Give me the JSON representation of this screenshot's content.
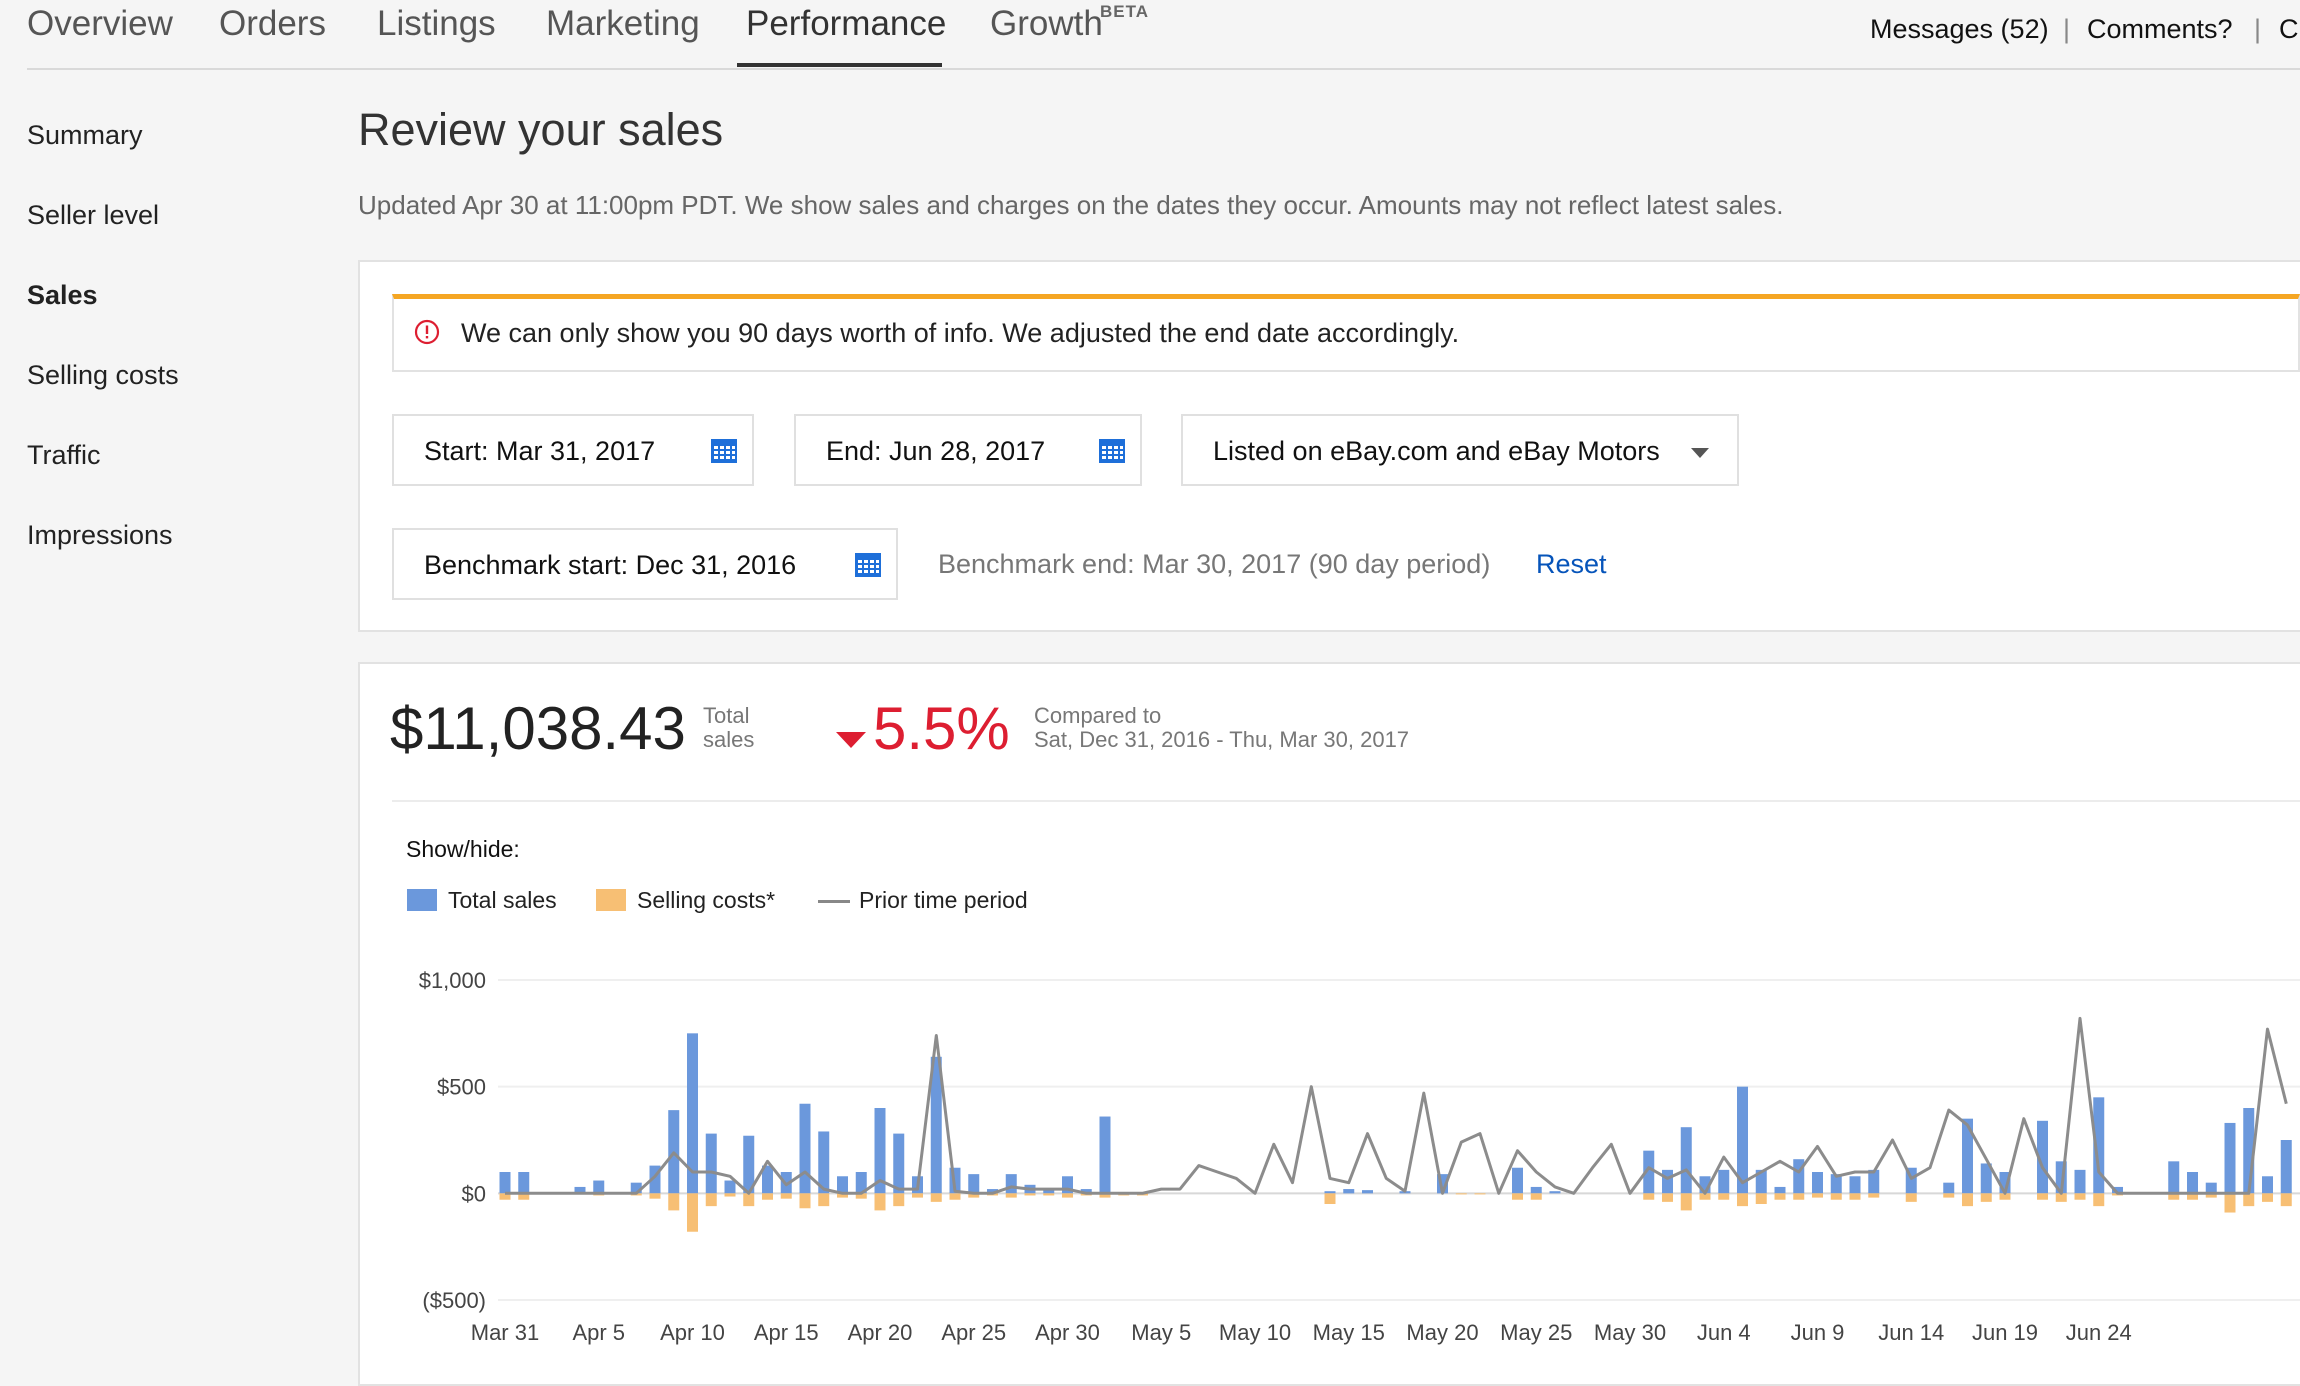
{
  "topnav": {
    "tabs": [
      "Overview",
      "Orders",
      "Listings",
      "Marketing",
      "Performance",
      "Growth"
    ],
    "beta_label": "BETA",
    "messages": "Messages (52)",
    "comments": "Comments?",
    "sep": "|",
    "cut_link": "C"
  },
  "sidebar": {
    "items": [
      "Summary",
      "Seller level",
      "Sales",
      "Selling costs",
      "Traffic",
      "Impressions"
    ]
  },
  "header": {
    "title": "Review your sales",
    "updated": "Updated Apr 30 at 11:00pm PDT. We show sales and charges on the dates they occur. Amounts may not reflect latest sales."
  },
  "filters": {
    "alert": "We can only show you 90 days worth of info. We adjusted the end date accordingly.",
    "start": "Start: Mar 31, 2017",
    "end": "End: Jun 28, 2017",
    "listed_on": "Listed on eBay.com and eBay Motors",
    "benchmark_start": "Benchmark start: Dec 31, 2016",
    "benchmark_end": "Benchmark end: Mar 30, 2017 (90 day period)",
    "reset": "Reset"
  },
  "summary": {
    "total": "$11,038.43",
    "total_label_1": "Total",
    "total_label_2": "sales",
    "change": "5.5%",
    "compared_label": "Compared to",
    "compared_range": "Sat, Dec 31, 2016 - Thu, Mar 30, 2017"
  },
  "colors": {
    "total_sales": "#6b98dc",
    "selling_costs": "#f7bf74",
    "prior_period": "#8c8c8c",
    "negative": "#dd1e31",
    "link": "#0654ba"
  },
  "chart_data": {
    "type": "bar",
    "show_hide_label": "Show/hide:",
    "legend": [
      "Total sales",
      "Selling costs*",
      "Prior time period"
    ],
    "y_ticks": [
      "$1,000",
      "$500",
      "$0",
      "($500)"
    ],
    "ylim": [
      -500,
      1000
    ],
    "x_ticks": [
      "Mar 31",
      "Apr 5",
      "Apr 10",
      "Apr 15",
      "Apr 20",
      "Apr 25",
      "Apr 30",
      "May 5",
      "May 10",
      "May 15",
      "May 20",
      "May 25",
      "May 30",
      "Jun 4",
      "Jun 9",
      "Jun 14",
      "Jun 19",
      "Jun 24"
    ],
    "series": [
      {
        "name": "Total sales",
        "values": [
          100,
          100,
          0,
          0,
          30,
          60,
          0,
          50,
          130,
          390,
          750,
          280,
          60,
          270,
          130,
          100,
          420,
          290,
          80,
          100,
          400,
          280,
          80,
          640,
          120,
          90,
          20,
          90,
          40,
          20,
          80,
          20,
          360,
          0,
          0,
          0,
          0,
          0,
          0,
          0,
          0,
          0,
          0,
          0,
          10,
          20,
          15,
          0,
          10,
          0,
          90,
          0,
          0,
          0,
          120,
          30,
          10,
          0,
          0,
          0,
          0,
          200,
          110,
          310,
          80,
          110,
          500,
          110,
          30,
          160,
          100,
          90,
          80,
          110,
          0,
          120,
          0,
          50,
          350,
          140,
          100,
          0,
          340,
          150,
          110,
          450,
          30,
          0,
          0,
          150,
          100,
          50,
          330,
          400,
          80,
          250
        ]
      },
      {
        "name": "Selling costs*",
        "values": [
          -30,
          -30,
          0,
          0,
          -5,
          -10,
          0,
          -10,
          -25,
          -80,
          -180,
          -60,
          -15,
          -60,
          -30,
          -25,
          -70,
          -60,
          -20,
          -25,
          -80,
          -60,
          -20,
          -40,
          -30,
          -20,
          -10,
          -20,
          -10,
          -10,
          -20,
          -10,
          -20,
          -10,
          -10,
          0,
          0,
          0,
          0,
          0,
          0,
          0,
          0,
          0,
          -50,
          0,
          0,
          0,
          0,
          0,
          0,
          -5,
          -5,
          0,
          -30,
          -30,
          0,
          0,
          0,
          0,
          0,
          -30,
          -40,
          -80,
          -30,
          -30,
          -60,
          -50,
          -30,
          -30,
          -20,
          -30,
          -30,
          -20,
          0,
          -40,
          0,
          -20,
          -60,
          -40,
          -30,
          0,
          -30,
          -40,
          -30,
          -60,
          -10,
          0,
          0,
          -30,
          -30,
          -20,
          -90,
          -60,
          -40,
          -60
        ]
      },
      {
        "name": "Prior time period",
        "values": [
          0,
          0,
          0,
          0,
          0,
          0,
          0,
          0,
          80,
          190,
          100,
          100,
          80,
          0,
          150,
          40,
          100,
          20,
          0,
          0,
          60,
          20,
          20,
          740,
          10,
          0,
          0,
          30,
          20,
          20,
          20,
          0,
          0,
          0,
          0,
          20,
          20,
          130,
          100,
          70,
          0,
          230,
          50,
          500,
          70,
          50,
          280,
          70,
          10,
          470,
          0,
          240,
          280,
          0,
          200,
          100,
          30,
          0,
          120,
          230,
          0,
          120,
          70,
          110,
          0,
          170,
          50,
          100,
          150,
          100,
          220,
          80,
          100,
          100,
          250,
          70,
          120,
          390,
          320,
          160,
          0,
          350,
          120,
          0,
          820,
          100,
          0,
          0,
          0,
          0,
          0,
          0,
          0,
          0,
          770,
          420
        ]
      }
    ]
  }
}
